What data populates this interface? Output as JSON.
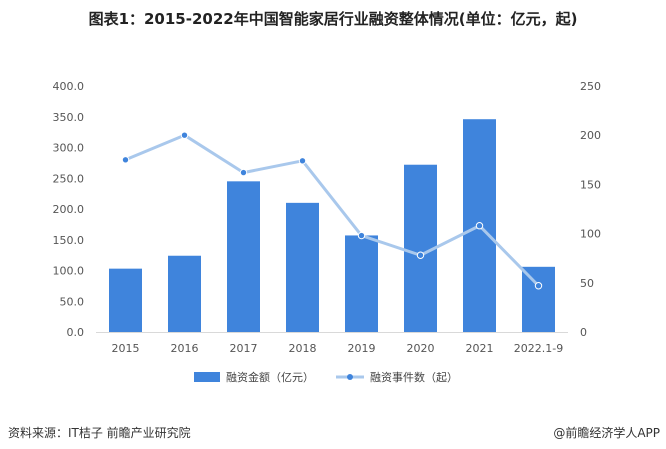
{
  "title": "图表1：2015-2022年中国智能家居行业融资整体情况(单位：亿元，起)",
  "source": "资料来源：IT桔子 前瞻产业研究院",
  "brand": "@前瞻经济学人APP",
  "colors": {
    "bar": "#3f84dc",
    "line": "#a9c8ec",
    "point": "#3f84dc",
    "axis": "#d9d9d9"
  },
  "chart_data": {
    "type": "bar+line",
    "categories": [
      "2015",
      "2016",
      "2017",
      "2018",
      "2019",
      "2020",
      "2021",
      "2022.1-9"
    ],
    "series": [
      {
        "name": "融资金额（亿元）",
        "type": "bar",
        "axis": "left",
        "values": [
          103,
          124,
          245,
          210,
          157,
          272,
          346,
          106
        ]
      },
      {
        "name": "融资事件数（起）",
        "type": "line",
        "axis": "right",
        "values": [
          175,
          200,
          162,
          174,
          98,
          78,
          108,
          47
        ]
      }
    ],
    "y_left": {
      "min": 0,
      "max": 400,
      "step": 50,
      "ticks": [
        "0.0",
        "50.0",
        "100.0",
        "150.0",
        "200.0",
        "250.0",
        "300.0",
        "350.0",
        "400.0"
      ]
    },
    "y_right": {
      "min": 0,
      "max": 250,
      "step": 50,
      "ticks": [
        "0",
        "50",
        "100",
        "150",
        "200",
        "250"
      ]
    },
    "grid": false,
    "legend": "bottom-center"
  }
}
